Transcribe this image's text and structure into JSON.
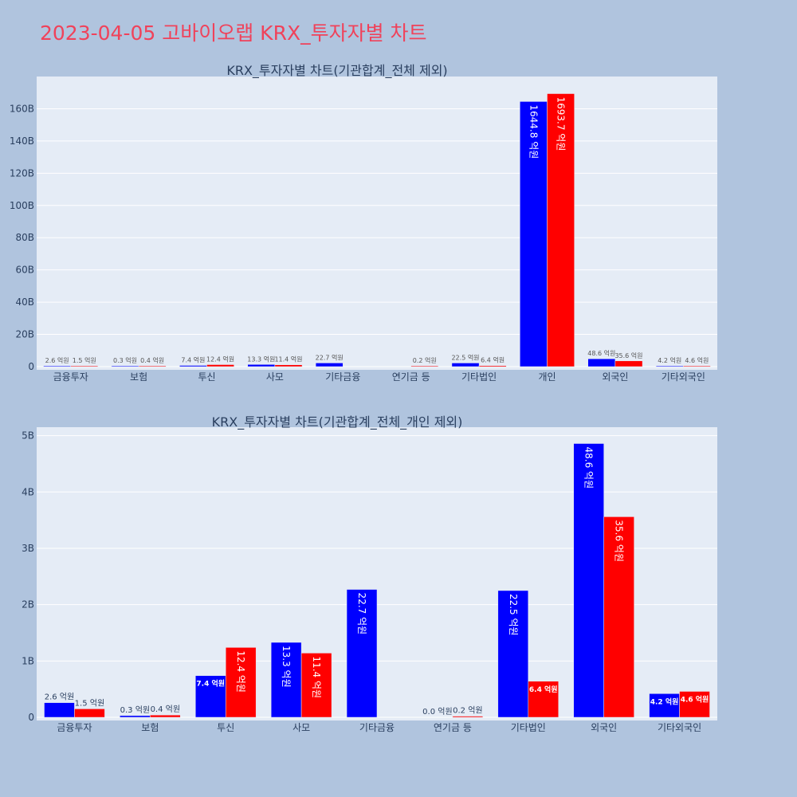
{
  "page_title": "2023-04-05 고바이오랩 KRX_투자자별 차트",
  "colors": {
    "buy": "#0000ff",
    "sell": "#ff0000",
    "plot_bg": "#e5ecf6",
    "page_bg": "#b0c4de",
    "title": "#f0425a"
  },
  "chart_data": [
    {
      "type": "bar",
      "title": "KRX_투자자별 차트(기관합계_전체 제외)",
      "categories": [
        "금융투자",
        "보험",
        "투신",
        "사모",
        "기타금융",
        "연기금 등",
        "기타법인",
        "개인",
        "외국인",
        "기타외국인"
      ],
      "yticks": [
        "0",
        "20B",
        "40B",
        "60B",
        "80B",
        "100B",
        "120B",
        "140B",
        "160B"
      ],
      "ylim": [
        0,
        180
      ],
      "series": [
        {
          "color": "#0000ff",
          "values": [
            0.26,
            0.03,
            0.74,
            1.33,
            2.27,
            0,
            2.25,
            164.48,
            4.86,
            0.42
          ],
          "labels": [
            "2.6 억원",
            "0.3 억원",
            "7.4 억원",
            "13.3 억원",
            "22.7 억원",
            "",
            "22.5 억원",
            "1644.8 억원",
            "48.6 억원",
            "4.2 억원"
          ]
        },
        {
          "color": "#ff0000",
          "values": [
            0.15,
            0.04,
            1.24,
            1.14,
            0,
            0.02,
            0.64,
            169.37,
            3.56,
            0.46
          ],
          "labels": [
            "1.5 억원",
            "0.4 억원",
            "12.4 억원",
            "11.4 억원",
            "",
            "0.2 억원",
            "6.4 억원",
            "1693.7 억원",
            "35.6 억원",
            "4.6 억원"
          ]
        }
      ]
    },
    {
      "type": "bar",
      "title": "KRX_투자자별 차트(기관합계_전체_개인 제외)",
      "categories": [
        "금융투자",
        "보험",
        "투신",
        "사모",
        "기타금융",
        "연기금 등",
        "기타법인",
        "외국인",
        "기타외국인"
      ],
      "yticks": [
        "0",
        "1B",
        "2B",
        "3B",
        "4B",
        "5B"
      ],
      "ylim": [
        0,
        5.15
      ],
      "series": [
        {
          "color": "#0000ff",
          "values": [
            0.26,
            0.03,
            0.74,
            1.33,
            2.27,
            0.0,
            2.25,
            4.86,
            0.42
          ],
          "labels": [
            "2.6 억원",
            "0.3 억원",
            "7.4 억원",
            "13.3 억원",
            "22.7 억원",
            "0.0 억원",
            "22.5 억원",
            "48.6 억원",
            "4.2 억원"
          ]
        },
        {
          "color": "#ff0000",
          "values": [
            0.15,
            0.04,
            1.24,
            1.14,
            0,
            0.02,
            0.64,
            3.56,
            0.46
          ],
          "labels": [
            "1.5 억원",
            "0.4 억원",
            "12.4 억원",
            "11.4 억원",
            "",
            "0.2 억원",
            "6.4 억원",
            "35.6 억원",
            "4.6 억원"
          ]
        }
      ]
    }
  ]
}
